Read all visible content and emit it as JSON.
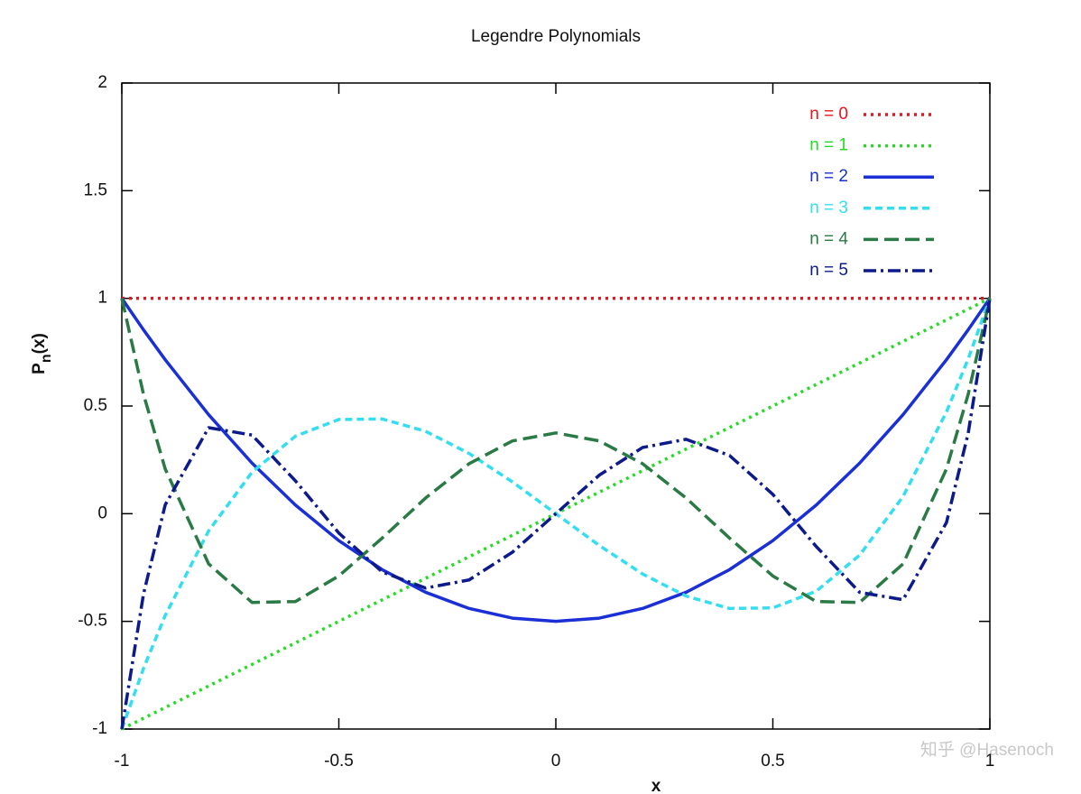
{
  "chart_data": {
    "type": "line",
    "title": "Legendre Polynomials",
    "xlabel": "x",
    "ylabel": [
      "P",
      "n",
      "(x)"
    ],
    "x": [
      -1,
      -0.95,
      -0.9,
      -0.8,
      -0.7,
      -0.6,
      -0.5,
      -0.4,
      -0.3,
      -0.2,
      -0.1,
      0,
      0.1,
      0.2,
      0.3,
      0.4,
      0.5,
      0.6,
      0.7,
      0.8,
      0.9,
      0.95,
      1
    ],
    "series": [
      {
        "name": "n = 0",
        "color": "#e8141c",
        "dash": "dotted",
        "values": [
          1,
          1,
          1,
          1,
          1,
          1,
          1,
          1,
          1,
          1,
          1,
          1,
          1,
          1,
          1,
          1,
          1,
          1,
          1,
          1,
          1,
          1,
          1
        ]
      },
      {
        "name": "n = 1",
        "color": "#22dd22",
        "dash": "dotted",
        "values": [
          -1,
          -0.95,
          -0.9,
          -0.8,
          -0.7,
          -0.6,
          -0.5,
          -0.4,
          -0.3,
          -0.2,
          -0.1,
          0,
          0.1,
          0.2,
          0.3,
          0.4,
          0.5,
          0.6,
          0.7,
          0.8,
          0.9,
          0.95,
          1
        ]
      },
      {
        "name": "n = 2",
        "color": "#1a2fd6",
        "dash": "solid",
        "values": [
          1,
          0.8538,
          0.715,
          0.46,
          0.235,
          0.04,
          -0.125,
          -0.26,
          -0.365,
          -0.44,
          -0.485,
          -0.5,
          -0.485,
          -0.44,
          -0.365,
          -0.26,
          -0.125,
          0.04,
          0.235,
          0.46,
          0.715,
          0.8538,
          1
        ]
      },
      {
        "name": "n = 3",
        "color": "#33def0",
        "dash": "dashed",
        "values": [
          -1,
          -0.7184,
          -0.4725,
          -0.08,
          0.1925,
          0.36,
          0.4375,
          0.44,
          0.3825,
          0.28,
          0.1475,
          0,
          -0.1475,
          -0.28,
          -0.3825,
          -0.44,
          -0.4375,
          -0.36,
          -0.1925,
          0.08,
          0.4725,
          0.7184,
          1
        ]
      },
      {
        "name": "n = 4",
        "color": "#2a7a45",
        "dash": "longdash",
        "values": [
          1,
          0.5541,
          0.2079,
          -0.233,
          -0.4121,
          -0.408,
          -0.2891,
          -0.113,
          0.0729,
          0.232,
          0.3379,
          0.375,
          0.3379,
          0.232,
          0.0729,
          -0.113,
          -0.2891,
          -0.408,
          -0.4121,
          -0.233,
          0.2079,
          0.5541,
          1
        ]
      },
      {
        "name": "n = 5",
        "color": "#0d1a8c",
        "dash": "dashdot",
        "values": [
          -1,
          -0.3728,
          0.0411,
          0.3995,
          0.3652,
          0.1526,
          -0.0898,
          -0.2706,
          -0.3454,
          -0.3075,
          -0.1788,
          0,
          0.1788,
          0.3075,
          0.3454,
          0.2706,
          0.0898,
          -0.1526,
          -0.3652,
          -0.3995,
          -0.0411,
          0.3728,
          1
        ]
      }
    ],
    "xlim": [
      -1,
      1
    ],
    "xticks": [
      -1,
      -0.5,
      0,
      0.5,
      1
    ],
    "ylim": [
      -1,
      2
    ],
    "yticks": [
      -1,
      -0.5,
      0,
      0.5,
      1,
      1.5,
      2
    ],
    "legend": "top-right",
    "grid": false,
    "watermark": "知乎 @Hasenoch"
  }
}
